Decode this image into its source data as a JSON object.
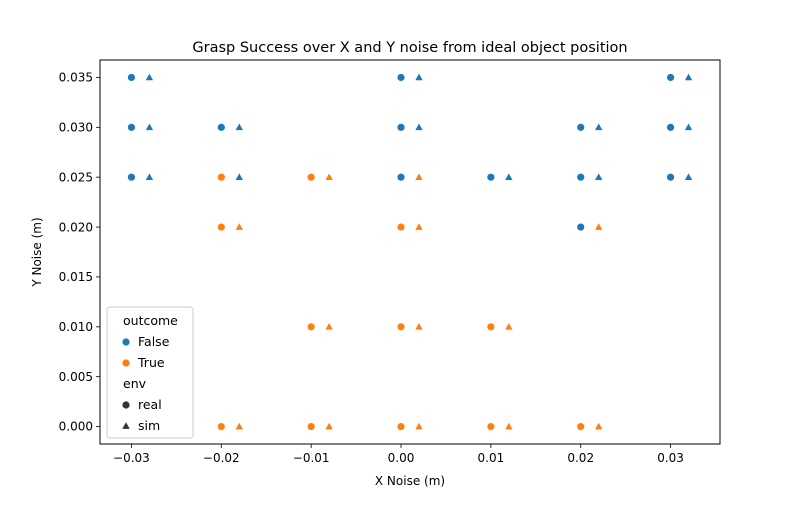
{
  "chart_data": {
    "type": "scatter",
    "title": "Grasp Success over X and Y noise from ideal object position",
    "xlabel": "X Noise (m)",
    "ylabel": "Y Noise (m)",
    "xlim": [
      -0.0335,
      0.0355
    ],
    "ylim": [
      -0.00175,
      0.03675
    ],
    "xticks": [
      -0.03,
      -0.02,
      -0.01,
      0.0,
      0.01,
      0.02,
      0.03
    ],
    "xtick_labels": [
      "−0.03",
      "−0.02",
      "−0.01",
      "0.00",
      "0.01",
      "0.02",
      "0.03"
    ],
    "yticks": [
      0.0,
      0.005,
      0.01,
      0.015,
      0.02,
      0.025,
      0.03,
      0.035
    ],
    "ytick_labels": [
      "0.000",
      "0.005",
      "0.010",
      "0.015",
      "0.020",
      "0.025",
      "0.030",
      "0.035"
    ],
    "grid": false,
    "legend": {
      "position": "lower-left",
      "hue_title": "outcome",
      "hue_entries": [
        {
          "label": "False",
          "color": "#1f77b4"
        },
        {
          "label": "True",
          "color": "#ff7f0e"
        }
      ],
      "style_title": "env",
      "style_entries": [
        {
          "label": "real",
          "marker": "circle"
        },
        {
          "label": "sim",
          "marker": "triangle"
        }
      ]
    },
    "series": [
      {
        "env": "real",
        "outcome": "False",
        "marker": "circle",
        "color": "#1f77b4",
        "points": [
          [
            -0.03,
            0.035
          ],
          [
            -0.03,
            0.03
          ],
          [
            -0.03,
            0.025
          ],
          [
            -0.02,
            0.03
          ],
          [
            0.0,
            0.035
          ],
          [
            0.0,
            0.03
          ],
          [
            0.0,
            0.025
          ],
          [
            0.01,
            0.025
          ],
          [
            0.02,
            0.03
          ],
          [
            0.02,
            0.025
          ],
          [
            0.02,
            0.02
          ],
          [
            0.03,
            0.035
          ],
          [
            0.03,
            0.03
          ],
          [
            0.03,
            0.025
          ]
        ]
      },
      {
        "env": "real",
        "outcome": "True",
        "marker": "circle",
        "color": "#ff7f0e",
        "points": [
          [
            -0.02,
            0.025
          ],
          [
            -0.02,
            0.02
          ],
          [
            -0.02,
            0.0
          ],
          [
            -0.01,
            0.025
          ],
          [
            -0.01,
            0.01
          ],
          [
            -0.01,
            0.0
          ],
          [
            0.0,
            0.02
          ],
          [
            0.0,
            0.01
          ],
          [
            0.0,
            0.0
          ],
          [
            0.01,
            0.01
          ],
          [
            0.01,
            0.0
          ],
          [
            0.02,
            0.0
          ]
        ]
      },
      {
        "env": "sim",
        "outcome": "False",
        "marker": "triangle",
        "color": "#1f77b4",
        "points": [
          [
            -0.028,
            0.035
          ],
          [
            -0.028,
            0.03
          ],
          [
            -0.028,
            0.025
          ],
          [
            -0.018,
            0.03
          ],
          [
            -0.018,
            0.025
          ],
          [
            0.002,
            0.035
          ],
          [
            0.002,
            0.03
          ],
          [
            0.012,
            0.025
          ],
          [
            0.022,
            0.03
          ],
          [
            0.022,
            0.025
          ],
          [
            0.032,
            0.035
          ],
          [
            0.032,
            0.03
          ],
          [
            0.032,
            0.025
          ]
        ]
      },
      {
        "env": "sim",
        "outcome": "True",
        "marker": "triangle",
        "color": "#ff7f0e",
        "points": [
          [
            -0.018,
            0.02
          ],
          [
            -0.018,
            0.0
          ],
          [
            -0.008,
            0.025
          ],
          [
            -0.008,
            0.01
          ],
          [
            -0.008,
            0.0
          ],
          [
            0.002,
            0.025
          ],
          [
            0.002,
            0.02
          ],
          [
            0.002,
            0.01
          ],
          [
            0.002,
            0.0
          ],
          [
            0.012,
            0.01
          ],
          [
            0.012,
            0.0
          ],
          [
            0.022,
            0.02
          ],
          [
            0.022,
            0.0
          ]
        ]
      }
    ]
  }
}
